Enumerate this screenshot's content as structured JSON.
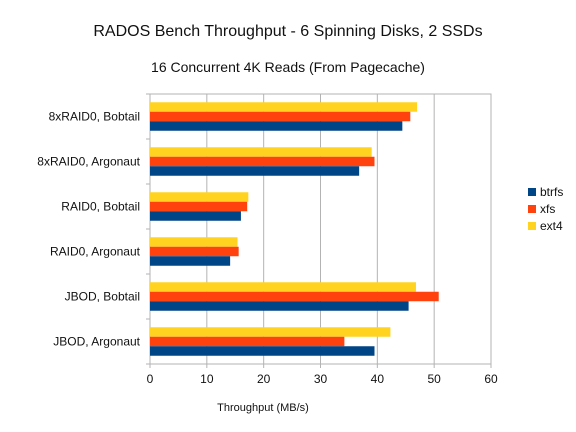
{
  "chart_data": {
    "type": "bar",
    "orientation": "horizontal",
    "title": "RADOS Bench Throughput - 6 Spinning Disks, 2 SSDs",
    "subtitle": "16 Concurrent 4K Reads (From Pagecache)",
    "xlabel": "Throughput (MB/s)",
    "ylabel": "",
    "xlim": [
      0,
      60
    ],
    "xticks": [
      "0",
      "10",
      "20",
      "30",
      "40",
      "50",
      "60"
    ],
    "grid": true,
    "legend_position": "right",
    "categories": [
      "8xRAID0, Bobtail",
      "8xRAID0, Argonaut",
      "RAID0, Bobtail",
      "RAID0, Argonaut",
      "JBOD, Bobtail",
      "JBOD, Argonaut"
    ],
    "series": [
      {
        "name": "btrfs",
        "color": "#004586",
        "values": [
          44.4,
          36.8,
          16.0,
          14.1,
          45.5,
          39.5
        ]
      },
      {
        "name": "xfs",
        "color": "#ff420e",
        "values": [
          45.8,
          39.5,
          17.1,
          15.6,
          50.8,
          34.2
        ]
      },
      {
        "name": "ext4",
        "color": "#ffd320",
        "values": [
          47.0,
          39.0,
          17.3,
          15.4,
          46.8,
          42.3
        ]
      }
    ]
  }
}
